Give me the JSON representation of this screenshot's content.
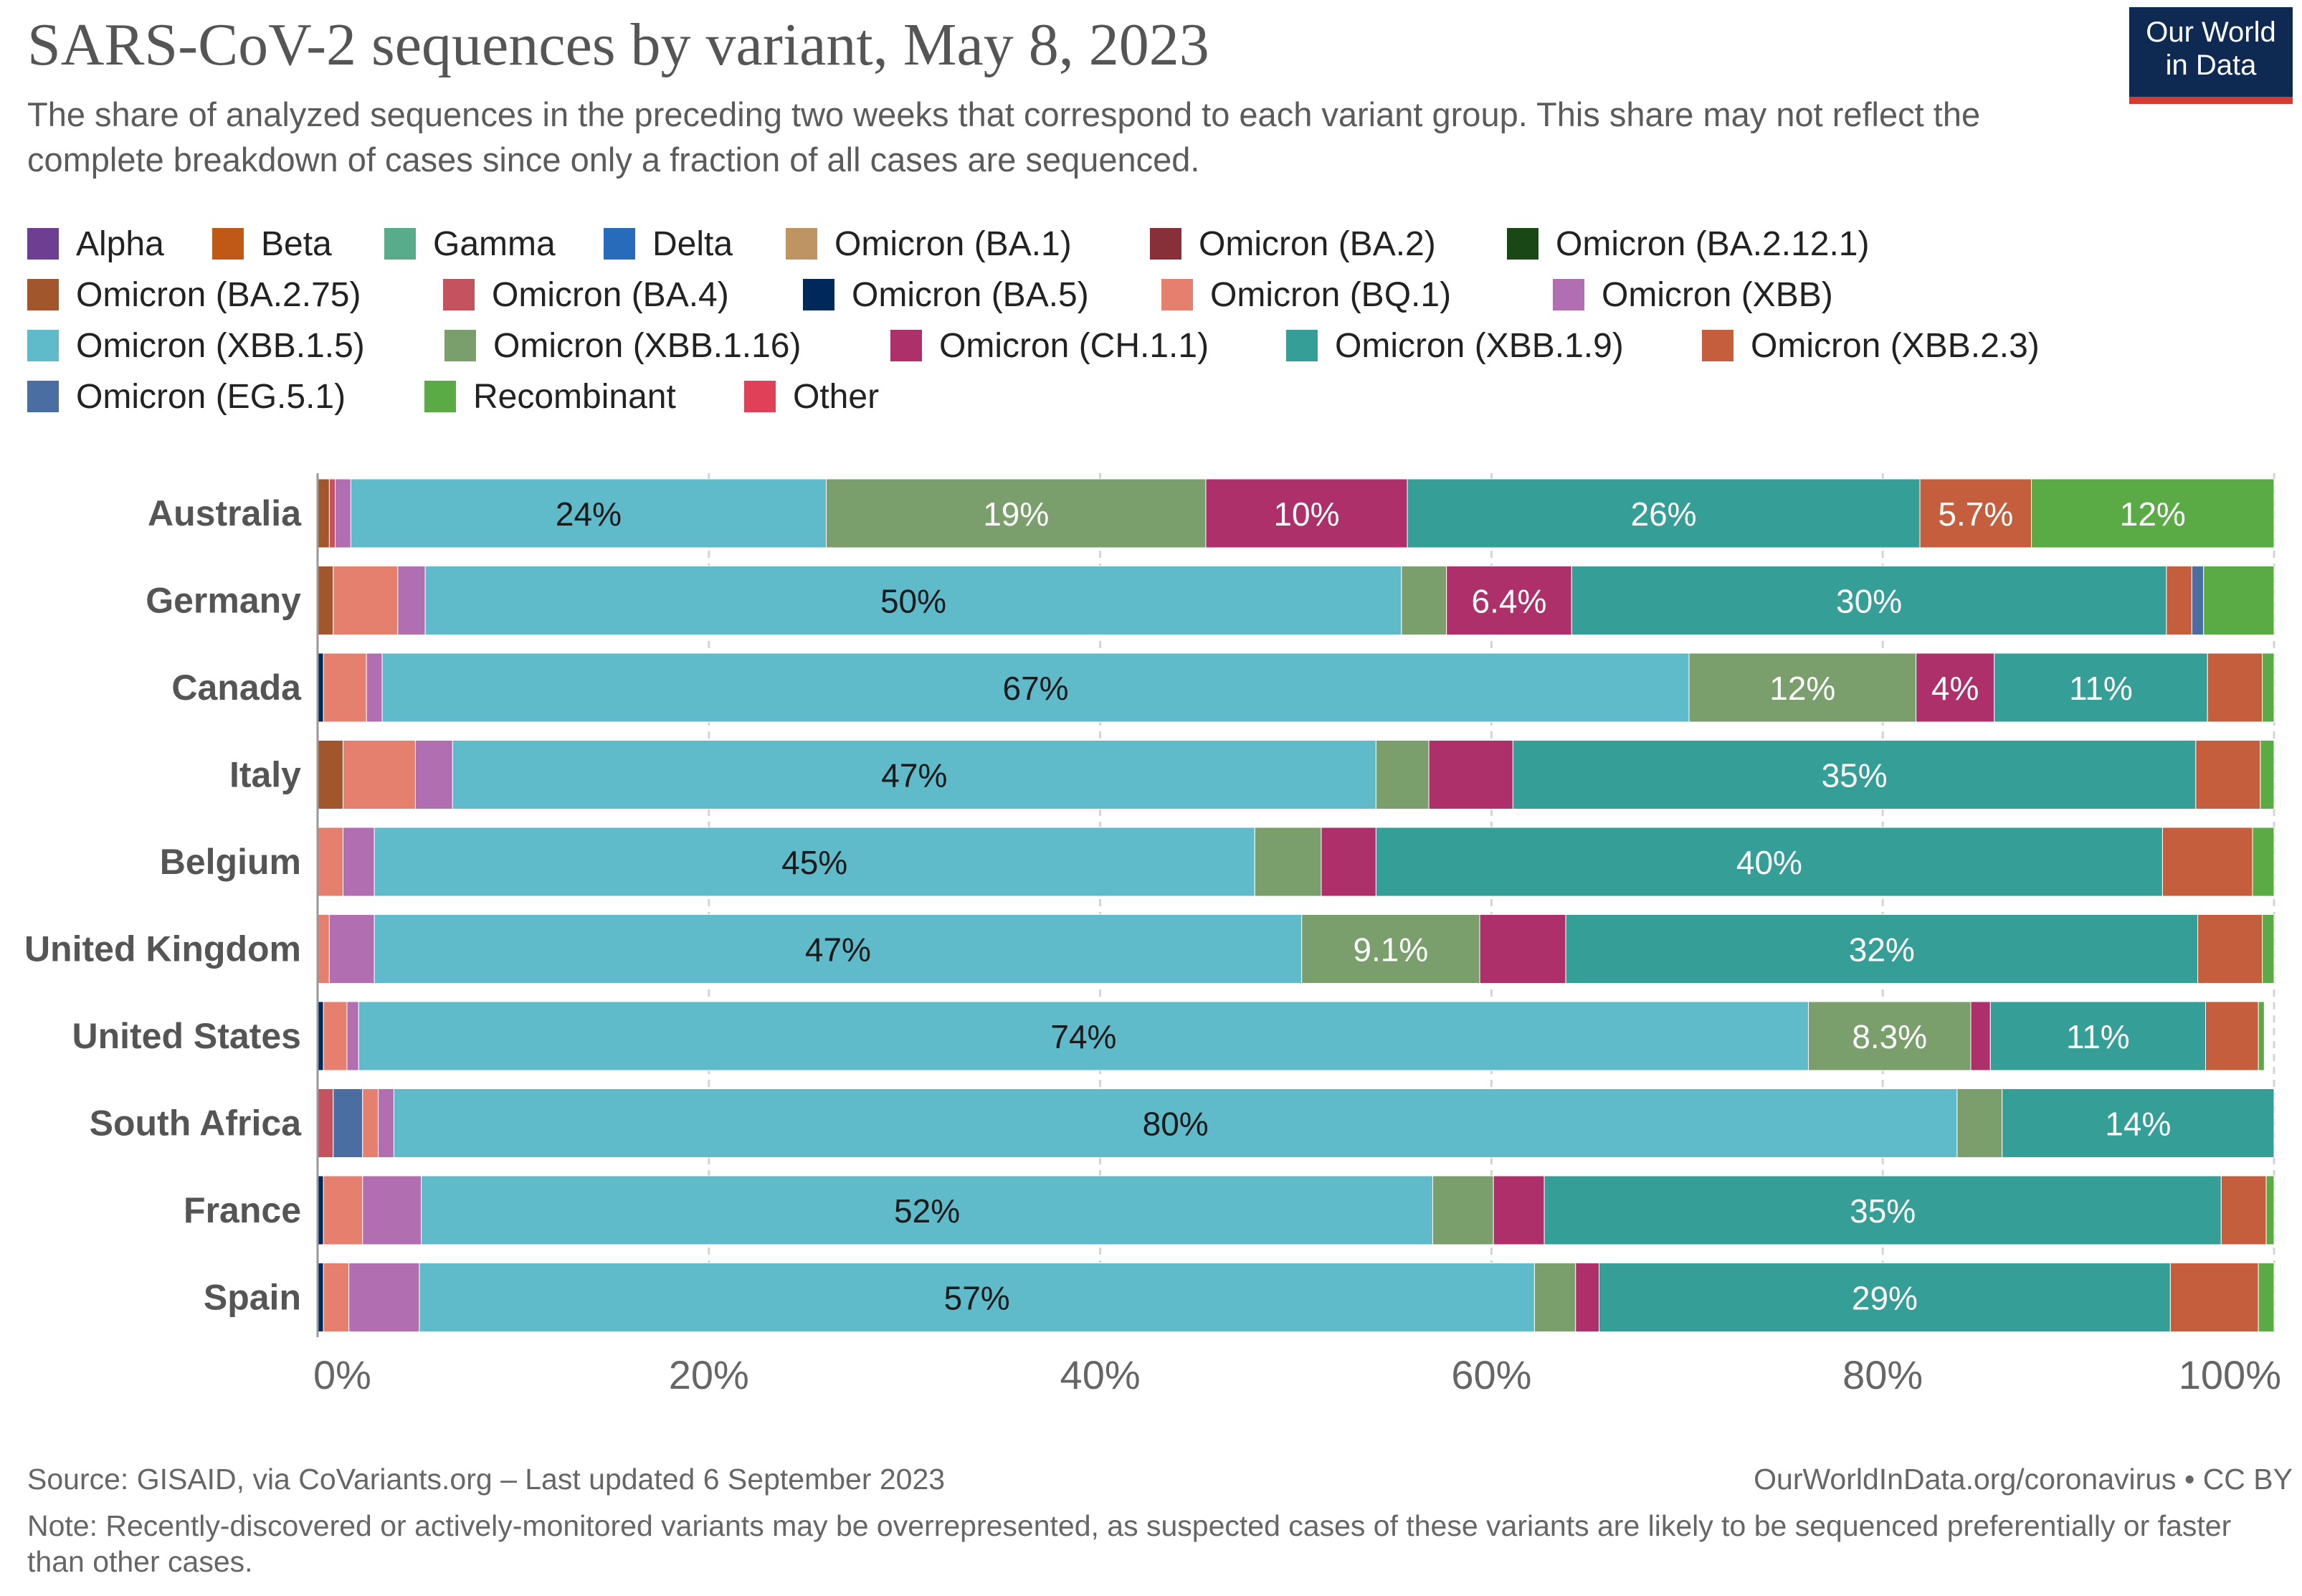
{
  "header": {
    "title": "SARS-CoV-2 sequences by variant, May 8, 2023",
    "subtitle": "The share of analyzed sequences in the preceding two weeks that correspond to each variant group. This share may not reflect the complete breakdown of cases since only a fraction of all cases are sequenced.",
    "logo_line1": "Our World",
    "logo_line2": "in Data"
  },
  "footer": {
    "source": "Source: GISAID, via CoVariants.org – Last updated 6 September 2023",
    "link": "OurWorldInData.org/coronavirus • CC BY",
    "note": "Note: Recently-discovered or actively-monitored variants may be overrepresented, as suspected cases of these variants are likely to be sequenced preferentially or faster than other cases."
  },
  "chart_data": {
    "type": "bar",
    "orientation": "horizontal",
    "stacked": true,
    "title": "SARS-CoV-2 sequences by variant, May 8, 2023",
    "xlabel": "",
    "ylabel": "",
    "xlim": [
      0,
      100
    ],
    "x_ticks": [
      "0%",
      "20%",
      "40%",
      "60%",
      "80%",
      "100%"
    ],
    "grid": true,
    "legend_position": "top",
    "variants": [
      {
        "name": "Alpha",
        "color": "#6d3e91"
      },
      {
        "name": "Beta",
        "color": "#c05917"
      },
      {
        "name": "Gamma",
        "color": "#58ac8c"
      },
      {
        "name": "Delta",
        "color": "#286bbb"
      },
      {
        "name": "Omicron (BA.1)",
        "color": "#bf9463"
      },
      {
        "name": "Omicron (BA.2)",
        "color": "#883039"
      },
      {
        "name": "Omicron (BA.2.12.1)",
        "color": "#1a4716"
      },
      {
        "name": "Omicron (BA.2.75)",
        "color": "#a2562c"
      },
      {
        "name": "Omicron (BA.4)",
        "color": "#c4525f"
      },
      {
        "name": "Omicron (BA.5)",
        "color": "#00295b"
      },
      {
        "name": "Omicron (BQ.1)",
        "color": "#e6806e"
      },
      {
        "name": "Omicron (XBB)",
        "color": "#b16eb1"
      },
      {
        "name": "Omicron (XBB.1.5)",
        "color": "#5fbac9"
      },
      {
        "name": "Omicron (XBB.1.16)",
        "color": "#7a9e6c"
      },
      {
        "name": "Omicron (CH.1.1)",
        "color": "#ad306b"
      },
      {
        "name": "Omicron (XBB.1.9)",
        "color": "#359e96"
      },
      {
        "name": "Omicron (XBB.2.3)",
        "color": "#c45e3c"
      },
      {
        "name": "Omicron (EG.5.1)",
        "color": "#4a6ea1"
      },
      {
        "name": "Recombinant",
        "color": "#5aaa46"
      },
      {
        "name": "Other",
        "color": "#e04158"
      }
    ],
    "categories": [
      "Australia",
      "Germany",
      "Canada",
      "Italy",
      "Belgium",
      "United Kingdom",
      "United States",
      "South Africa",
      "France",
      "Spain"
    ],
    "series": [
      {
        "name": "Australia",
        "segments": [
          {
            "variant": "Omicron (BA.2.75)",
            "value": 0.6
          },
          {
            "variant": "Omicron (BA.4)",
            "value": 0.3
          },
          {
            "variant": "Omicron (XBB)",
            "value": 0.8
          },
          {
            "variant": "Omicron (XBB.1.5)",
            "value": 24.3,
            "label": "24%"
          },
          {
            "variant": "Omicron (XBB.1.16)",
            "value": 19.4,
            "label": "19%"
          },
          {
            "variant": "Omicron (CH.1.1)",
            "value": 10.3,
            "label": "10%"
          },
          {
            "variant": "Omicron (XBB.1.9)",
            "value": 26.2,
            "label": "26%"
          },
          {
            "variant": "Omicron (XBB.2.3)",
            "value": 5.7,
            "label": "5.7%"
          },
          {
            "variant": "Recombinant",
            "value": 12.4,
            "label": "12%"
          }
        ]
      },
      {
        "name": "Germany",
        "segments": [
          {
            "variant": "Omicron (BA.2.75)",
            "value": 0.8
          },
          {
            "variant": "Omicron (BQ.1)",
            "value": 3.3
          },
          {
            "variant": "Omicron (XBB)",
            "value": 1.4
          },
          {
            "variant": "Omicron (XBB.1.5)",
            "value": 49.9,
            "label": "50%"
          },
          {
            "variant": "Omicron (XBB.1.16)",
            "value": 2.3
          },
          {
            "variant": "Omicron (CH.1.1)",
            "value": 6.4,
            "label": "6.4%"
          },
          {
            "variant": "Omicron (XBB.1.9)",
            "value": 30.4,
            "label": "30%"
          },
          {
            "variant": "Omicron (XBB.2.3)",
            "value": 1.3
          },
          {
            "variant": "Omicron (EG.5.1)",
            "value": 0.6
          },
          {
            "variant": "Recombinant",
            "value": 3.6
          }
        ]
      },
      {
        "name": "Canada",
        "segments": [
          {
            "variant": "Omicron (BA.5)",
            "value": 0.3
          },
          {
            "variant": "Omicron (BQ.1)",
            "value": 2.2
          },
          {
            "variant": "Omicron (XBB)",
            "value": 0.8
          },
          {
            "variant": "Omicron (XBB.1.5)",
            "value": 66.8,
            "label": "67%"
          },
          {
            "variant": "Omicron (XBB.1.16)",
            "value": 11.6,
            "label": "12%"
          },
          {
            "variant": "Omicron (CH.1.1)",
            "value": 4.0,
            "label": "4%"
          },
          {
            "variant": "Omicron (XBB.1.9)",
            "value": 10.9,
            "label": "11%"
          },
          {
            "variant": "Omicron (XBB.2.3)",
            "value": 2.8
          },
          {
            "variant": "Recombinant",
            "value": 0.6
          }
        ]
      },
      {
        "name": "Italy",
        "segments": [
          {
            "variant": "Omicron (BA.2.75)",
            "value": 1.3
          },
          {
            "variant": "Omicron (BQ.1)",
            "value": 3.7
          },
          {
            "variant": "Omicron (XBB)",
            "value": 1.9
          },
          {
            "variant": "Omicron (XBB.1.5)",
            "value": 47.2,
            "label": "47%"
          },
          {
            "variant": "Omicron (XBB.1.16)",
            "value": 2.7
          },
          {
            "variant": "Omicron (CH.1.1)",
            "value": 4.3
          },
          {
            "variant": "Omicron (XBB.1.9)",
            "value": 34.9,
            "label": "35%"
          },
          {
            "variant": "Omicron (XBB.2.3)",
            "value": 3.3
          },
          {
            "variant": "Recombinant",
            "value": 0.7
          }
        ]
      },
      {
        "name": "Belgium",
        "segments": [
          {
            "variant": "Omicron (BQ.1)",
            "value": 1.3
          },
          {
            "variant": "Omicron (XBB)",
            "value": 1.6
          },
          {
            "variant": "Omicron (XBB.1.5)",
            "value": 45.0,
            "label": "45%"
          },
          {
            "variant": "Omicron (XBB.1.16)",
            "value": 3.4
          },
          {
            "variant": "Omicron (CH.1.1)",
            "value": 2.8
          },
          {
            "variant": "Omicron (XBB.1.9)",
            "value": 40.2,
            "label": "40%"
          },
          {
            "variant": "Omicron (XBB.2.3)",
            "value": 4.6
          },
          {
            "variant": "Recombinant",
            "value": 1.1
          }
        ]
      },
      {
        "name": "United Kingdom",
        "segments": [
          {
            "variant": "Omicron (BQ.1)",
            "value": 0.6
          },
          {
            "variant": "Omicron (XBB)",
            "value": 2.3
          },
          {
            "variant": "Omicron (XBB.1.5)",
            "value": 47.4,
            "label": "47%"
          },
          {
            "variant": "Omicron (XBB.1.16)",
            "value": 9.1,
            "label": "9.1%"
          },
          {
            "variant": "Omicron (CH.1.1)",
            "value": 4.4
          },
          {
            "variant": "Omicron (XBB.1.9)",
            "value": 32.3,
            "label": "32%"
          },
          {
            "variant": "Omicron (XBB.2.3)",
            "value": 3.3
          },
          {
            "variant": "Recombinant",
            "value": 0.6
          }
        ]
      },
      {
        "name": "United States",
        "segments": [
          {
            "variant": "Omicron (BA.5)",
            "value": 0.3
          },
          {
            "variant": "Omicron (BQ.1)",
            "value": 1.2
          },
          {
            "variant": "Omicron (XBB)",
            "value": 0.6
          },
          {
            "variant": "Omicron (XBB.1.5)",
            "value": 74.1,
            "label": "74%"
          },
          {
            "variant": "Omicron (XBB.1.16)",
            "value": 8.3,
            "label": "8.3%"
          },
          {
            "variant": "Omicron (CH.1.1)",
            "value": 1.0
          },
          {
            "variant": "Omicron (XBB.1.9)",
            "value": 11.0,
            "label": "11%"
          },
          {
            "variant": "Omicron (XBB.2.3)",
            "value": 2.7
          },
          {
            "variant": "Recombinant",
            "value": 0.3
          }
        ]
      },
      {
        "name": "South Africa",
        "segments": [
          {
            "variant": "Omicron (BA.4)",
            "value": 0.8
          },
          {
            "variant": "Omicron (EG.5.1)",
            "value": 1.5
          },
          {
            "variant": "Omicron (BQ.1)",
            "value": 0.8
          },
          {
            "variant": "Omicron (XBB)",
            "value": 0.8
          },
          {
            "variant": "Omicron (XBB.1.5)",
            "value": 79.9,
            "label": "80%"
          },
          {
            "variant": "Omicron (XBB.1.16)",
            "value": 2.3
          },
          {
            "variant": "Omicron (XBB.1.9)",
            "value": 13.9,
            "label": "14%"
          }
        ]
      },
      {
        "name": "France",
        "segments": [
          {
            "variant": "Omicron (BA.5)",
            "value": 0.3
          },
          {
            "variant": "Omicron (BQ.1)",
            "value": 2.0
          },
          {
            "variant": "Omicron (XBB)",
            "value": 3.0
          },
          {
            "variant": "Omicron (XBB.1.5)",
            "value": 51.7,
            "label": "52%"
          },
          {
            "variant": "Omicron (XBB.1.16)",
            "value": 3.1
          },
          {
            "variant": "Omicron (CH.1.1)",
            "value": 2.6
          },
          {
            "variant": "Omicron (XBB.1.9)",
            "value": 34.6,
            "label": "35%"
          },
          {
            "variant": "Omicron (XBB.2.3)",
            "value": 2.3
          },
          {
            "variant": "Recombinant",
            "value": 0.4
          }
        ]
      },
      {
        "name": "Spain",
        "segments": [
          {
            "variant": "Omicron (BA.5)",
            "value": 0.3
          },
          {
            "variant": "Omicron (BQ.1)",
            "value": 1.3
          },
          {
            "variant": "Omicron (XBB)",
            "value": 3.6
          },
          {
            "variant": "Omicron (XBB.1.5)",
            "value": 57.0,
            "label": "57%"
          },
          {
            "variant": "Omicron (XBB.1.16)",
            "value": 2.1
          },
          {
            "variant": "Omicron (CH.1.1)",
            "value": 1.2
          },
          {
            "variant": "Omicron (XBB.1.9)",
            "value": 29.2,
            "label": "29%"
          },
          {
            "variant": "Omicron (XBB.2.3)",
            "value": 4.5
          },
          {
            "variant": "Recombinant",
            "value": 0.8
          }
        ]
      }
    ]
  }
}
